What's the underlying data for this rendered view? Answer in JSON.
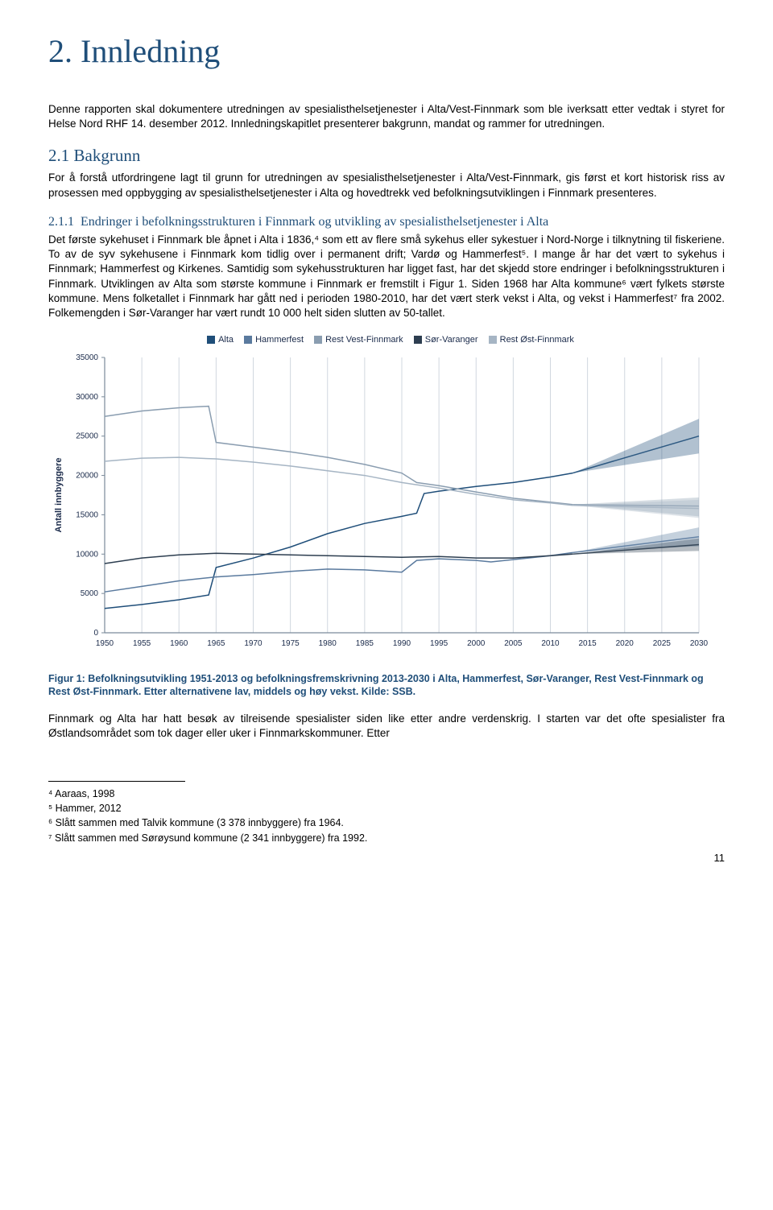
{
  "section": {
    "title": "2. Innledning",
    "intro": "Denne rapporten skal dokumentere utredningen av spesialisthelsetjenester i Alta/Vest-Finnmark som ble iverksatt etter vedtak i styret for Helse Nord RHF 14. desember 2012. Innledningskapitlet presenterer bakgrunn, mandat og rammer for utredningen."
  },
  "sub1": {
    "title": "2.1   Bakgrunn",
    "text": "For å forstå utfordringene lagt til grunn for utredningen av spesialisthelsetjenester i Alta/Vest-Finnmark, gis først et kort historisk riss av prosessen med oppbygging av spesialisthelsetjenester i Alta og hovedtrekk ved befolkningsutviklingen i Finnmark presenteres."
  },
  "sub2": {
    "title_num": "2.1.1",
    "title_text": "Endringer i befolkningsstrukturen i Finnmark og utvikling av spesialisthelsetjenester i Alta",
    "text": "Det første sykehuset i Finnmark ble åpnet i Alta i 1836,⁴ som ett av flere små sykehus eller sykestuer i Nord-Norge i tilknytning til fiskeriene. To av de syv sykehusene i Finnmark kom tidlig over i permanent drift; Vardø og Hammerfest⁵. I mange år har det vært to sykehus i Finnmark; Hammerfest og Kirkenes. Samtidig som sykehusstrukturen har ligget fast, har det skjedd store endringer i befolkningsstrukturen i Finnmark. Utviklingen av Alta som største kommune i Finnmark er fremstilt i Figur 1. Siden 1968 har Alta kommune⁶ vært fylkets største kommune. Mens folketallet i Finnmark har gått ned i perioden 1980-2010, har det vært sterk vekst i Alta, og vekst i Hammerfest⁷ fra 2002. Folkemengden i Sør-Varanger har vært rundt 10 000 helt siden slutten av 50-tallet."
  },
  "chart": {
    "type": "line",
    "title_legend": {
      "items": [
        {
          "label": "Alta",
          "color": "#1f4e79"
        },
        {
          "label": "Hammerfest",
          "color": "#5a7a9e"
        },
        {
          "label": "Rest Vest-Finnmark",
          "color": "#8a9db0"
        },
        {
          "label": "Sør-Varanger",
          "color": "#2d3e50"
        },
        {
          "label": "Rest Øst-Finnmark",
          "color": "#a6b5c4"
        }
      ]
    },
    "yaxis": {
      "label": "Antall innbyggere",
      "min": 0,
      "max": 35000,
      "step": 5000,
      "ticks": [
        0,
        5000,
        10000,
        15000,
        20000,
        25000,
        30000,
        35000
      ],
      "label_fontsize": 11,
      "tick_fontsize": 10,
      "label_color": "#1a2a4a"
    },
    "xaxis": {
      "min": 1950,
      "max": 2030,
      "step": 5,
      "ticks": [
        1950,
        1955,
        1960,
        1965,
        1970,
        1975,
        1980,
        1985,
        1990,
        1995,
        2000,
        2005,
        2010,
        2015,
        2020,
        2025,
        2030
      ],
      "tick_fontsize": 10,
      "label_color": "#1a2a4a"
    },
    "grid": {
      "show_x": true,
      "show_y": false,
      "color": "#d0d7df",
      "width": 1
    },
    "axis_line_color": "#7a8a9a",
    "background_color": "#ffffff",
    "line_width": 1.5,
    "series": {
      "Alta": {
        "color": "#1f4e79",
        "data": [
          [
            1950,
            3100
          ],
          [
            1955,
            3600
          ],
          [
            1960,
            4200
          ],
          [
            1964,
            4800
          ],
          [
            1965,
            8300
          ],
          [
            1970,
            9500
          ],
          [
            1975,
            10900
          ],
          [
            1980,
            12600
          ],
          [
            1985,
            13900
          ],
          [
            1990,
            14800
          ],
          [
            1992,
            15200
          ],
          [
            1993,
            17700
          ],
          [
            1995,
            18000
          ],
          [
            2000,
            18600
          ],
          [
            2005,
            19100
          ],
          [
            2010,
            19800
          ],
          [
            2013,
            20300
          ]
        ],
        "projection": {
          "low": [
            [
              2013,
              20300
            ],
            [
              2030,
              22800
            ]
          ],
          "mid": [
            [
              2013,
              20300
            ],
            [
              2030,
              25000
            ]
          ],
          "high": [
            [
              2013,
              20300
            ],
            [
              2030,
              27200
            ]
          ]
        }
      },
      "Hammerfest": {
        "color": "#5a7a9e",
        "data": [
          [
            1950,
            5200
          ],
          [
            1955,
            5900
          ],
          [
            1960,
            6600
          ],
          [
            1965,
            7100
          ],
          [
            1970,
            7400
          ],
          [
            1975,
            7800
          ],
          [
            1980,
            8100
          ],
          [
            1985,
            8000
          ],
          [
            1990,
            7700
          ],
          [
            1992,
            9200
          ],
          [
            1995,
            9400
          ],
          [
            2000,
            9200
          ],
          [
            2002,
            9000
          ],
          [
            2005,
            9300
          ],
          [
            2010,
            9800
          ],
          [
            2013,
            10200
          ]
        ],
        "projection": {
          "low": [
            [
              2013,
              10200
            ],
            [
              2030,
              11000
            ]
          ],
          "mid": [
            [
              2013,
              10200
            ],
            [
              2030,
              12200
            ]
          ],
          "high": [
            [
              2013,
              10200
            ],
            [
              2030,
              13400
            ]
          ]
        }
      },
      "RestVestFinnmark": {
        "color": "#8a9db0",
        "data": [
          [
            1950,
            27500
          ],
          [
            1955,
            28200
          ],
          [
            1960,
            28600
          ],
          [
            1964,
            28800
          ],
          [
            1965,
            24200
          ],
          [
            1970,
            23600
          ],
          [
            1975,
            23000
          ],
          [
            1980,
            22300
          ],
          [
            1985,
            21400
          ],
          [
            1990,
            20300
          ],
          [
            1992,
            19100
          ],
          [
            1995,
            18700
          ],
          [
            2000,
            17900
          ],
          [
            2005,
            17100
          ],
          [
            2010,
            16600
          ],
          [
            2013,
            16300
          ]
        ],
        "projection": {
          "low": [
            [
              2013,
              16300
            ],
            [
              2030,
              14800
            ]
          ],
          "mid": [
            [
              2013,
              16300
            ],
            [
              2030,
              16100
            ]
          ],
          "high": [
            [
              2013,
              16300
            ],
            [
              2030,
              17200
            ]
          ]
        }
      },
      "SorVaranger": {
        "color": "#2d3e50",
        "data": [
          [
            1950,
            8800
          ],
          [
            1955,
            9500
          ],
          [
            1960,
            9900
          ],
          [
            1965,
            10100
          ],
          [
            1970,
            10000
          ],
          [
            1975,
            9900
          ],
          [
            1980,
            9800
          ],
          [
            1985,
            9700
          ],
          [
            1990,
            9600
          ],
          [
            1995,
            9700
          ],
          [
            2000,
            9500
          ],
          [
            2005,
            9500
          ],
          [
            2010,
            9800
          ],
          [
            2013,
            10000
          ]
        ],
        "projection": {
          "low": [
            [
              2013,
              10000
            ],
            [
              2030,
              10400
            ]
          ],
          "mid": [
            [
              2013,
              10000
            ],
            [
              2030,
              11200
            ]
          ],
          "high": [
            [
              2013,
              10000
            ],
            [
              2030,
              12000
            ]
          ]
        }
      },
      "RestOstFinnmark": {
        "color": "#a6b5c4",
        "data": [
          [
            1950,
            21800
          ],
          [
            1955,
            22200
          ],
          [
            1960,
            22300
          ],
          [
            1965,
            22100
          ],
          [
            1970,
            21700
          ],
          [
            1975,
            21200
          ],
          [
            1980,
            20600
          ],
          [
            1985,
            20000
          ],
          [
            1990,
            19100
          ],
          [
            1995,
            18400
          ],
          [
            2000,
            17600
          ],
          [
            2005,
            16900
          ],
          [
            2010,
            16500
          ],
          [
            2013,
            16200
          ]
        ],
        "projection": {
          "low": [
            [
              2013,
              16200
            ],
            [
              2030,
              14600
            ]
          ],
          "mid": [
            [
              2013,
              16200
            ],
            [
              2030,
              15800
            ]
          ],
          "high": [
            [
              2013,
              16200
            ],
            [
              2030,
              16900
            ]
          ]
        }
      }
    }
  },
  "figcap": "Figur 1: Befolkningsutvikling 1951-2013 og befolkningsfremskrivning 2013-2030 i Alta, Hammerfest, Sør-Varanger, Rest Vest-Finnmark og Rest Øst-Finnmark. Etter alternativene lav, middels og høy vekst. Kilde: SSB.",
  "post_fig": "Finnmark og Alta har hatt besøk av tilreisende spesialister siden like etter andre verdenskrig. I starten var det ofte spesialister fra Østlandsområdet som tok dager eller uker i Finnmarkskommuner. Etter",
  "footnotes": {
    "f4": "⁴ Aaraas, 1998",
    "f5": "⁵ Hammer, 2012",
    "f6": "⁶ Slått sammen med Talvik kommune (3 378 innbyggere) fra 1964.",
    "f7": "⁷ Slått sammen med Sørøysund kommune (2 341 innbyggere) fra 1992."
  },
  "page_num": "11"
}
